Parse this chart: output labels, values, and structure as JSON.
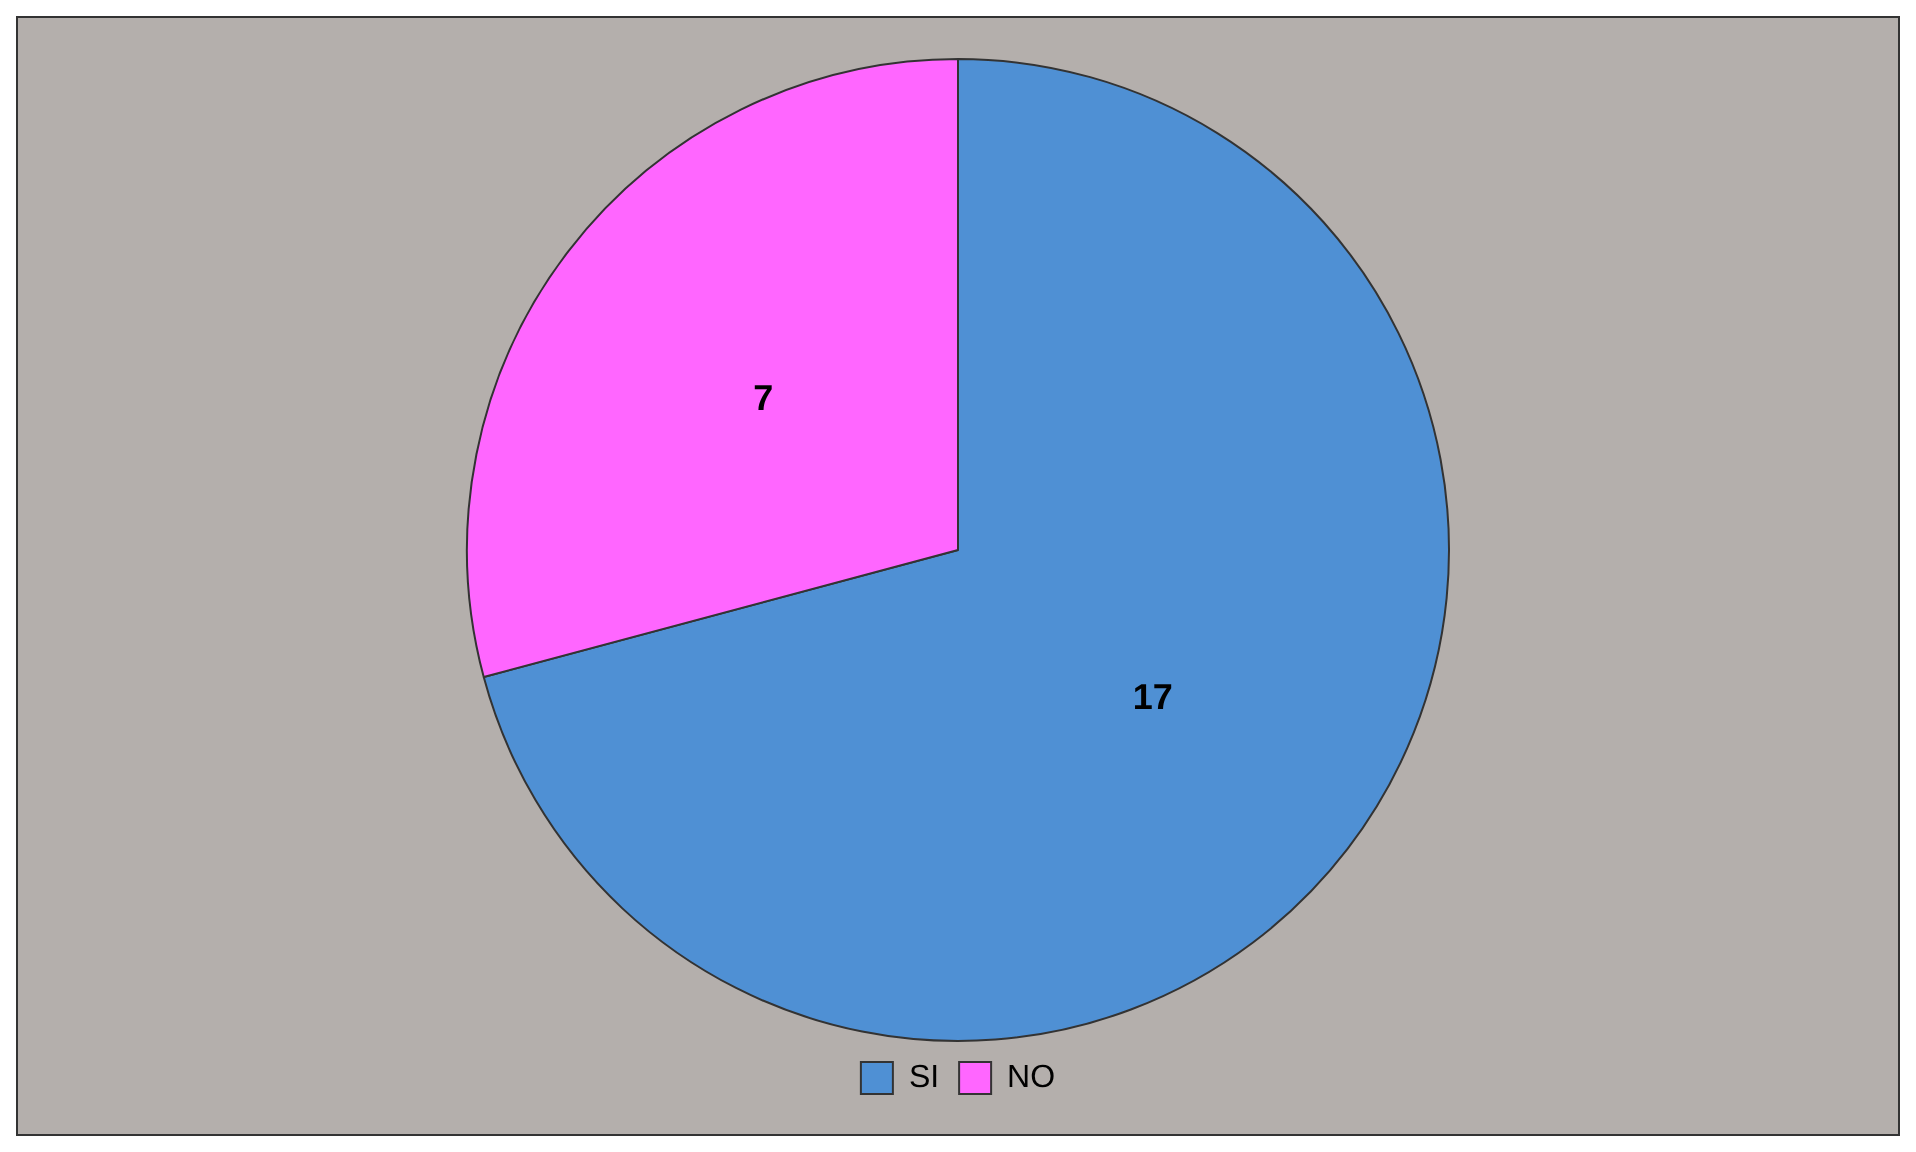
{
  "chart_data": {
    "type": "pie",
    "categories": [
      "SI",
      "NO"
    ],
    "values": [
      17,
      7
    ],
    "colors": [
      "#4f90d4",
      "#ff66ff"
    ],
    "data_labels": true,
    "legend": "bottom"
  }
}
